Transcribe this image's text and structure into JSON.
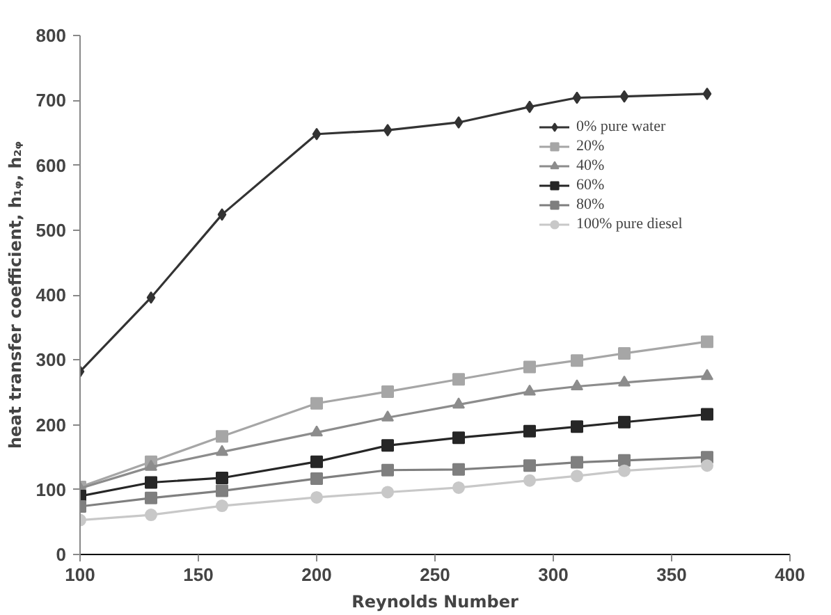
{
  "chart_data": {
    "type": "line",
    "xlabel": "Reynolds Number",
    "ylabel": "heat transfer coefficient, h₁ᵩ, h₂ᵩ",
    "x": [
      100,
      130,
      160,
      200,
      230,
      260,
      290,
      310,
      330,
      365
    ],
    "xlim": [
      100,
      400
    ],
    "xticks": [
      100,
      150,
      200,
      250,
      300,
      350,
      400
    ],
    "ylim": [
      0,
      800
    ],
    "yticks": [
      0,
      100,
      200,
      300,
      400,
      500,
      600,
      700,
      800
    ],
    "grid": false,
    "legend": "right",
    "line_style": "solid",
    "series": [
      {
        "name": "0% pure water",
        "color": "#333333",
        "marker": "diamond",
        "values": [
          282,
          396,
          524,
          648,
          654,
          666,
          690,
          704,
          706,
          710
        ]
      },
      {
        "name": "20%",
        "color": "#a6a6a6",
        "marker": "square",
        "values": [
          104,
          143,
          182,
          233,
          251,
          270,
          289,
          299,
          310,
          328
        ]
      },
      {
        "name": "40%",
        "color": "#8c8c8c",
        "marker": "triangle",
        "values": [
          102,
          135,
          158,
          188,
          211,
          231,
          251,
          259,
          265,
          275
        ]
      },
      {
        "name": "60%",
        "color": "#262626",
        "marker": "square",
        "values": [
          90,
          111,
          118,
          143,
          168,
          180,
          190,
          197,
          204,
          216
        ]
      },
      {
        "name": "80%",
        "color": "#7f7f7f",
        "marker": "square",
        "values": [
          74,
          87,
          98,
          117,
          130,
          131,
          137,
          142,
          145,
          150
        ]
      },
      {
        "name": "100% pure diesel",
        "color": "#c8c8c8",
        "marker": "circle",
        "values": [
          53,
          61,
          75,
          88,
          96,
          103,
          114,
          121,
          129,
          137
        ]
      }
    ]
  }
}
